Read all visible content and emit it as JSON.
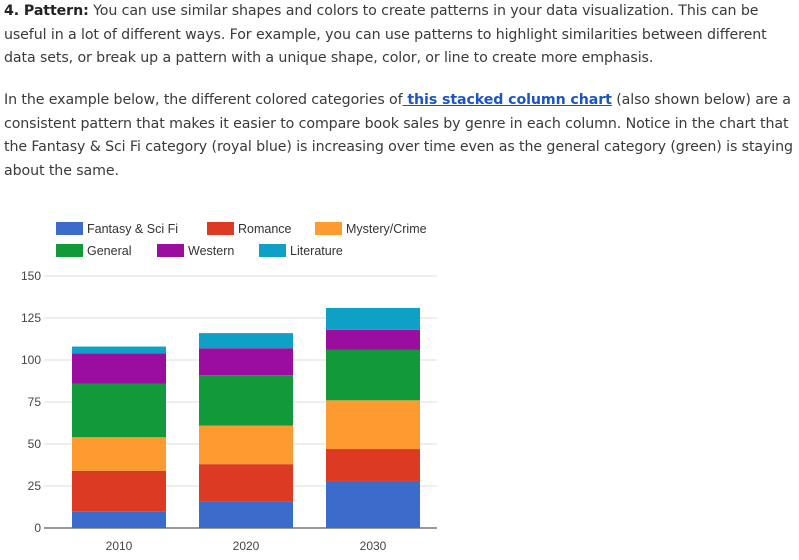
{
  "paragraph1": {
    "heading": "4. Pattern:",
    "text": " You can use similar shapes and colors to create patterns in your data visualization. This can be useful in a lot of different ways. For example, you can use patterns to highlight similarities between different data sets, or break up a pattern with a unique shape, color, or line to create more emphasis."
  },
  "paragraph2": {
    "before": "In the example below, the different colored categories of",
    "link": " this stacked column chart",
    "after": " (also shown below) are a consistent pattern that makes it easier to compare book sales by genre in each column. Notice in the chart that the Fantasy & Sci Fi category (royal blue) is increasing over time even as the general category (green) is staying about the same."
  },
  "chart_data": {
    "type": "bar",
    "stacked": true,
    "categories": [
      "2010",
      "2020",
      "2030"
    ],
    "series": [
      {
        "name": "Fantasy & Sci Fi",
        "color": "#3b6ccb",
        "values": [
          10,
          16,
          28
        ]
      },
      {
        "name": "Romance",
        "color": "#dc3a23",
        "values": [
          24,
          22,
          19
        ]
      },
      {
        "name": "Mystery/Crime",
        "color": "#fd9a30",
        "values": [
          20,
          23,
          29
        ]
      },
      {
        "name": "General",
        "color": "#129a3a",
        "values": [
          32,
          30,
          30
        ]
      },
      {
        "name": "Western",
        "color": "#9b0d9e",
        "values": [
          18,
          16,
          12
        ]
      },
      {
        "name": "Literature",
        "color": "#0fa0c8",
        "values": [
          4,
          9,
          13
        ]
      }
    ],
    "yticks": [
      "0",
      "25",
      "50",
      "75",
      "100",
      "125",
      "150"
    ],
    "ylim": [
      0,
      150
    ],
    "grid": true,
    "legend_position": "top"
  }
}
